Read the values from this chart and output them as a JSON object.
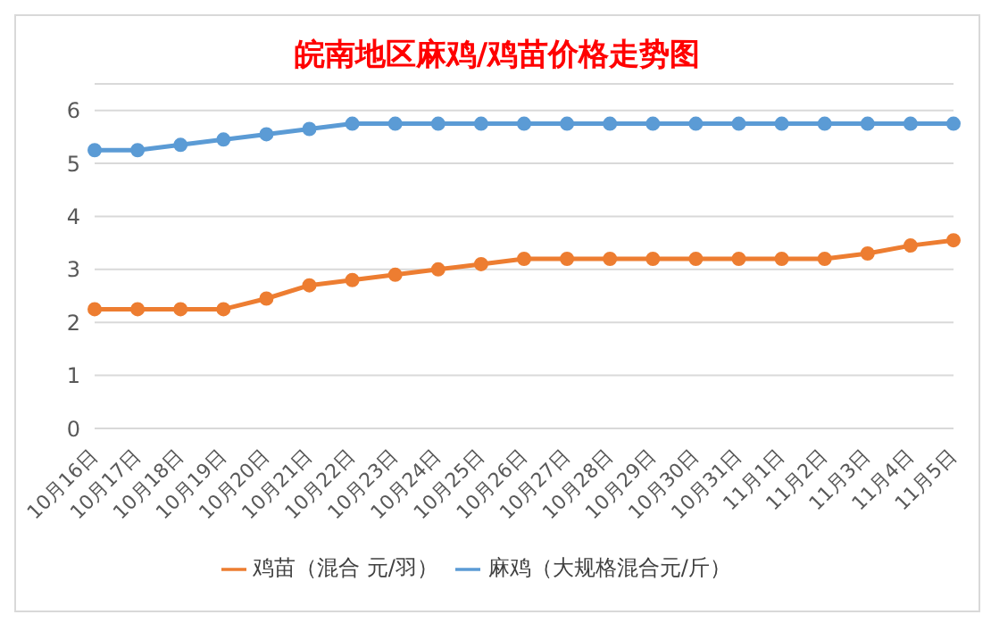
{
  "chart_data": {
    "type": "line",
    "title": "皖南地区麻鸡/鸡苗价格走势图",
    "categories": [
      "10月16日",
      "10月17日",
      "10月18日",
      "10月19日",
      "10月20日",
      "10月21日",
      "10月22日",
      "10月23日",
      "10月24日",
      "10月25日",
      "10月26日",
      "10月27日",
      "10月28日",
      "10月29日",
      "10月30日",
      "10月31日",
      "11月1日",
      "11月2日",
      "11月3日",
      "11月4日",
      "11月5日"
    ],
    "series": [
      {
        "name": "麻鸡（大规格混合元/斤）",
        "color": "#5b9bd5",
        "values": [
          5.25,
          5.25,
          5.35,
          5.45,
          5.55,
          5.65,
          5.75,
          5.75,
          5.75,
          5.75,
          5.75,
          5.75,
          5.75,
          5.75,
          5.75,
          5.75,
          5.75,
          5.75,
          5.75,
          5.75,
          5.75
        ]
      },
      {
        "name": "鸡苗（混合 元/羽）",
        "color": "#ed7d31",
        "values": [
          2.25,
          2.25,
          2.25,
          2.25,
          2.45,
          2.7,
          2.8,
          2.9,
          3.0,
          3.1,
          3.2,
          3.2,
          3.2,
          3.2,
          3.2,
          3.2,
          3.2,
          3.2,
          3.3,
          3.45,
          3.55
        ]
      }
    ],
    "ylim": [
      0,
      6.5
    ],
    "yticks": [
      0,
      1,
      2,
      3,
      4,
      5,
      6
    ],
    "grid": "y",
    "legend": "bottom",
    "marker": "circle",
    "line_style": "solid"
  }
}
